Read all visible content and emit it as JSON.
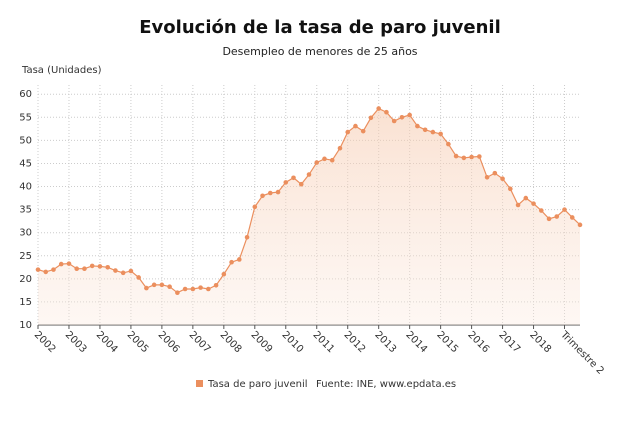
{
  "chart_data": {
    "type": "line",
    "title": "Evolución de la tasa de paro juvenil",
    "subtitle": "Desempleo de menores de 25 años",
    "y_axis_label": "Tasa (Unidades)",
    "source": "Fuente: INE, www.epdata.es",
    "categories": [
      "2002",
      null,
      null,
      null,
      "2003",
      null,
      null,
      null,
      "2004",
      null,
      null,
      null,
      "2005",
      null,
      null,
      null,
      "2006",
      null,
      null,
      null,
      "2007",
      null,
      null,
      null,
      "2008",
      null,
      null,
      null,
      "2009",
      null,
      null,
      null,
      "2010",
      null,
      null,
      null,
      "2011",
      null,
      null,
      null,
      "2012",
      null,
      null,
      null,
      "2013",
      null,
      null,
      null,
      "2014",
      null,
      null,
      null,
      "2015",
      null,
      null,
      null,
      "2016",
      null,
      null,
      null,
      "2017",
      null,
      null,
      null,
      "2018",
      null,
      null,
      null,
      "Trimestre 2",
      null,
      null
    ],
    "series": [
      {
        "name": "Tasa de paro juvenil",
        "color": "#eb8f5e",
        "values": [
          22,
          21.5,
          22,
          23.2,
          23.3,
          22.2,
          22.2,
          22.8,
          22.7,
          22.5,
          21.8,
          21.3,
          21.7,
          20.3,
          18,
          18.7,
          18.7,
          18.3,
          17,
          17.8,
          17.8,
          18.1,
          17.8,
          18.6,
          21,
          23.6,
          24.2,
          29,
          35.6,
          38,
          38.6,
          38.8,
          40.9,
          41.9,
          40.5,
          42.6,
          45.2,
          46,
          45.7,
          48.3,
          51.8,
          53.1,
          52,
          54.9,
          56.9,
          56.1,
          54.2,
          55,
          55.5,
          53.1,
          52.3,
          51.8,
          51.4,
          49.2,
          46.6,
          46.2,
          46.4,
          46.5,
          42,
          42.9,
          41.7,
          39.5,
          36,
          37.5,
          36.3,
          34.8,
          33,
          33.5,
          35,
          33.3,
          31.7
        ]
      }
    ],
    "ylim": [
      10,
      62
    ],
    "yticks": [
      10,
      15,
      20,
      25,
      30,
      35,
      40,
      45,
      50,
      55,
      60
    ],
    "grid": true
  }
}
